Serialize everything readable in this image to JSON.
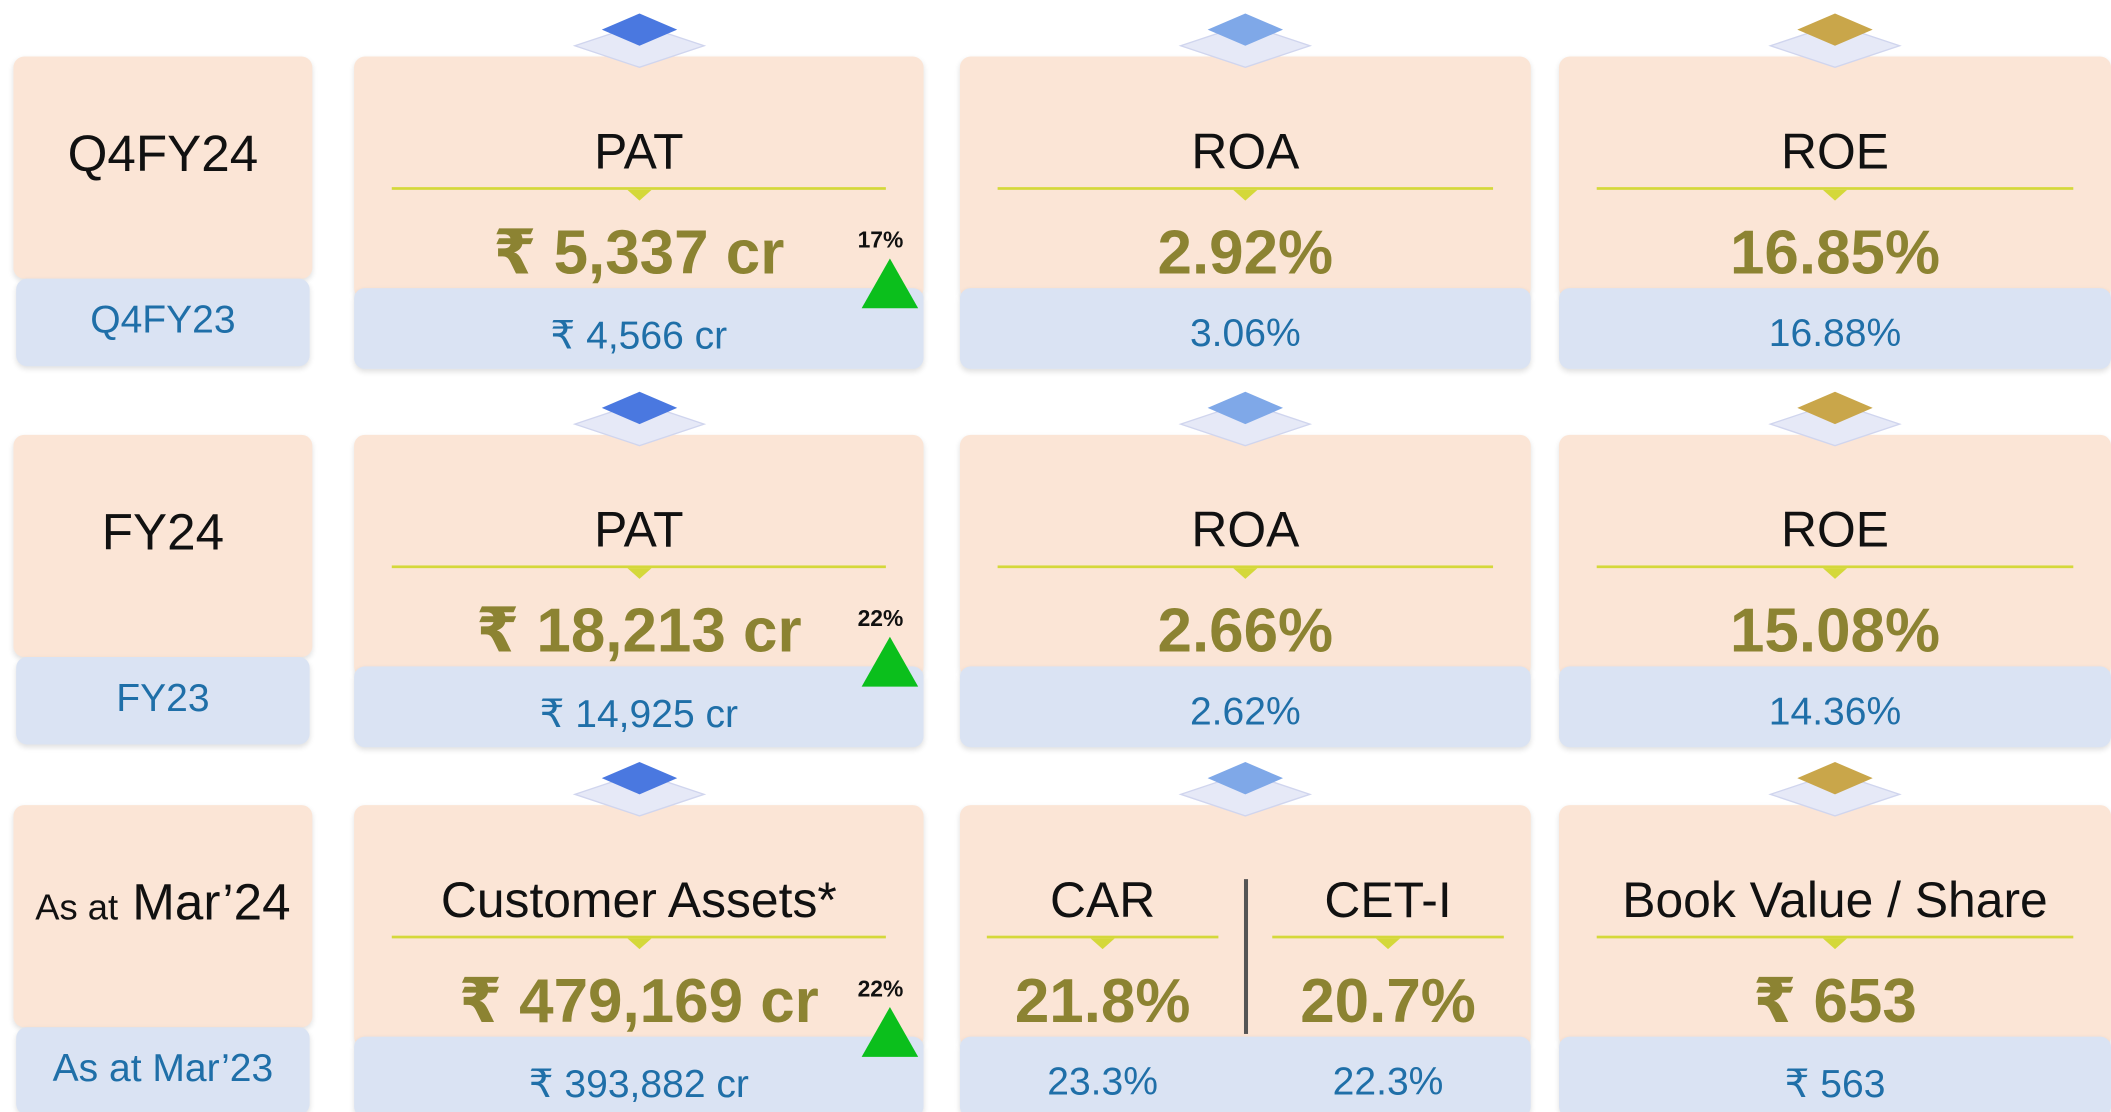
{
  "rows": [
    {
      "label": "Q4FY24",
      "prev_label": "Q4FY23",
      "cards": [
        {
          "title": "PAT",
          "value": "₹ 5,337 cr",
          "prev": "₹ 4,566 cr",
          "growth": "17%"
        },
        {
          "title": "ROA",
          "value": "2.92%",
          "prev": "3.06%"
        },
        {
          "title": "ROE",
          "value": "16.85%",
          "prev": "16.88%"
        }
      ]
    },
    {
      "label": "FY24",
      "prev_label": "FY23",
      "cards": [
        {
          "title": "PAT",
          "value": "₹ 18,213 cr",
          "prev": "₹ 14,925 cr",
          "growth": "22%"
        },
        {
          "title": "ROA",
          "value": "2.66%",
          "prev": "2.62%"
        },
        {
          "title": "ROE",
          "value": "15.08%",
          "prev": "14.36%"
        }
      ]
    },
    {
      "label_prefix": "As at",
      "label": "Mar’24",
      "prev_label": "As at Mar’23",
      "cards": [
        {
          "title": "Customer Assets*",
          "value": "₹ 479,169 cr",
          "prev": "₹ 393,882 cr",
          "growth": "22%"
        },
        {
          "parts": [
            {
              "title": "CAR",
              "value": "21.8%",
              "prev": "23.3%"
            },
            {
              "title": "CET-I",
              "value": "20.7%",
              "prev": "22.3%"
            }
          ]
        },
        {
          "title": "Book Value / Share",
          "value": "₹ 653",
          "prev": "₹ 563"
        }
      ]
    }
  ]
}
